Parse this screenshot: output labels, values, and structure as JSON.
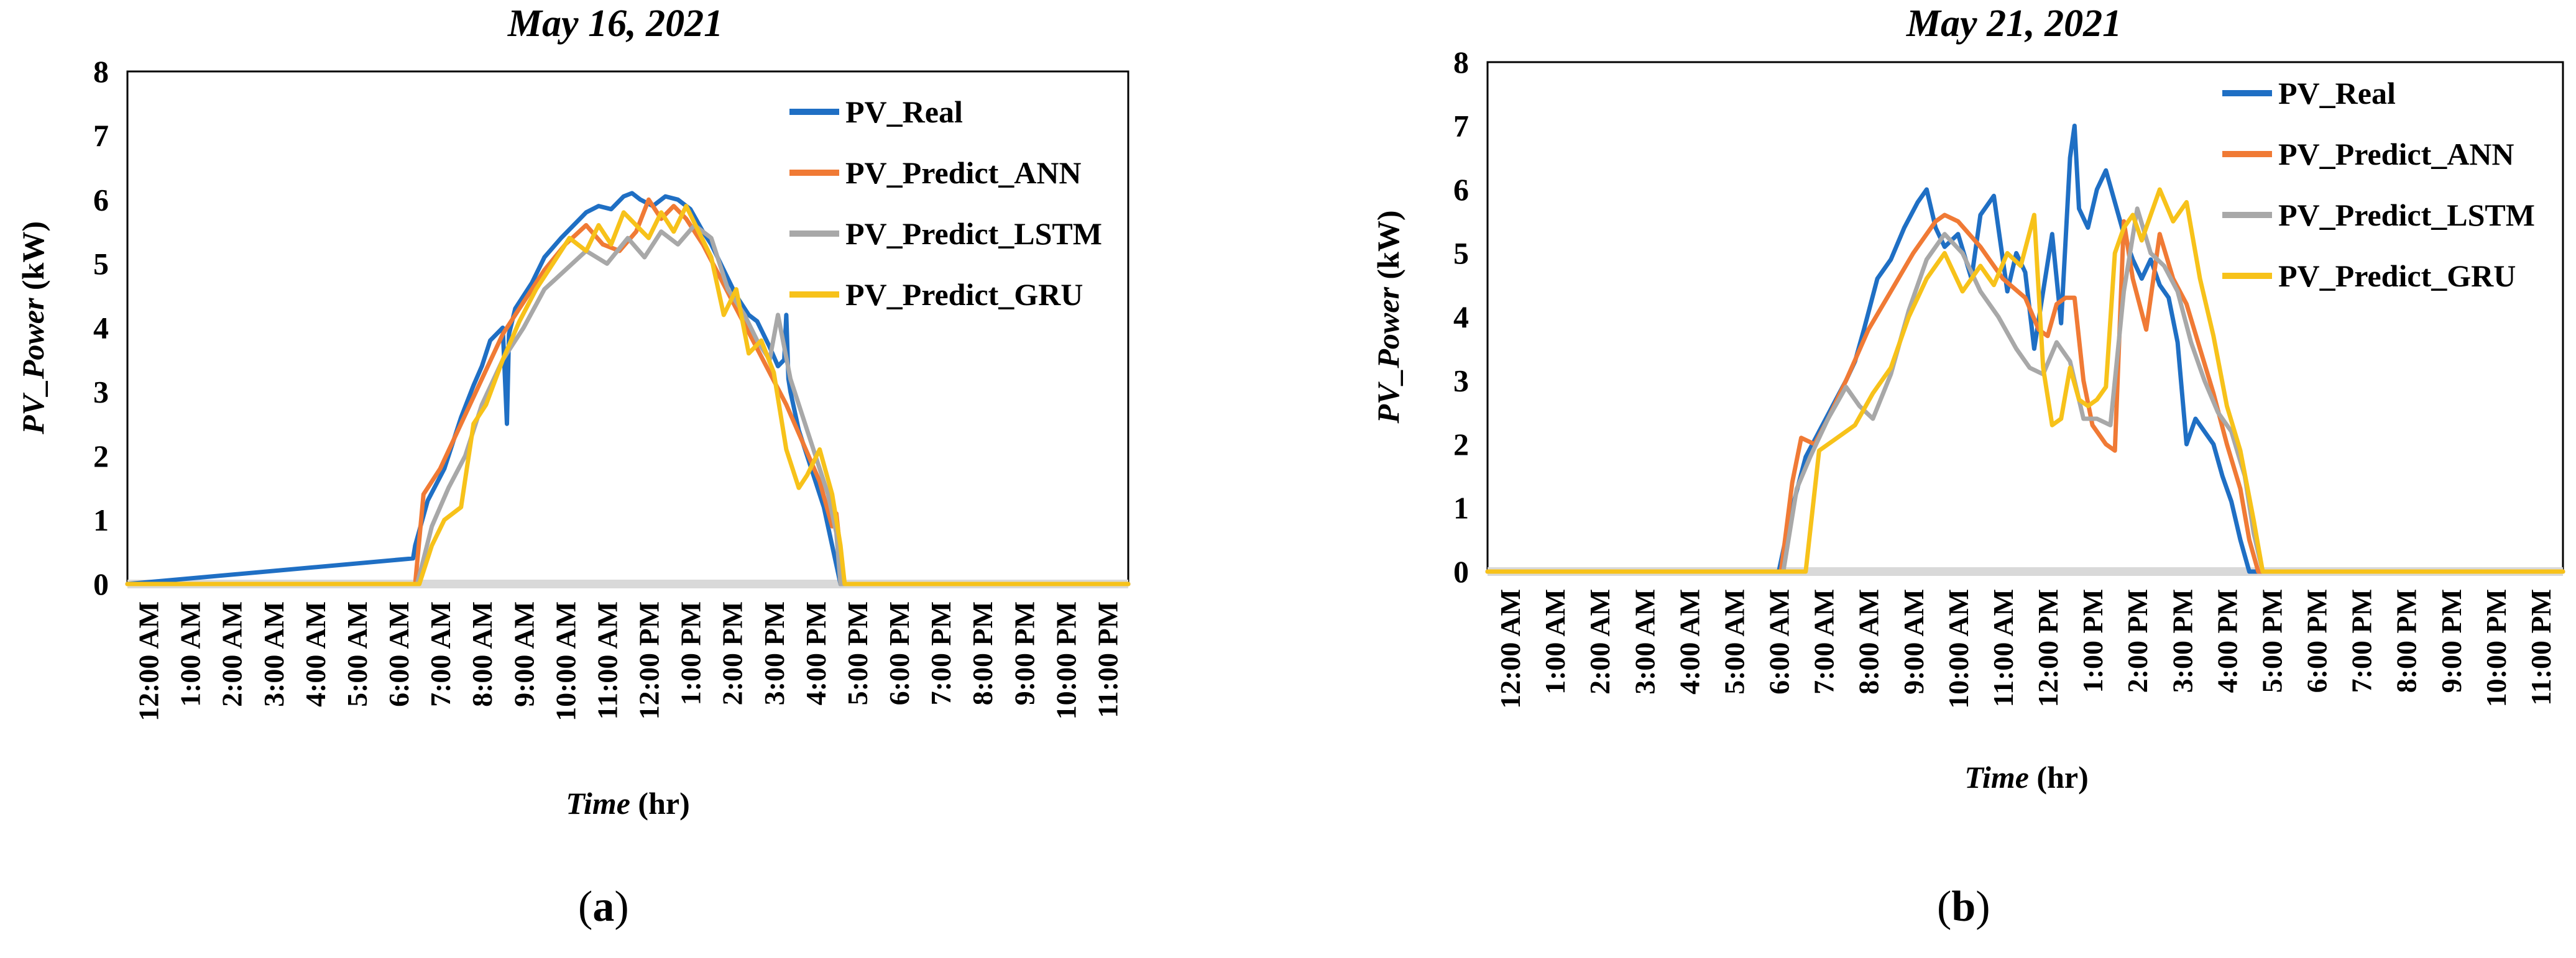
{
  "colors": {
    "PV_Real": "#1f6fc4",
    "PV_Predict_ANN": "#f07a35",
    "PV_Predict_LSTM": "#a8a8a8",
    "PV_Predict_GRU": "#f7c21a",
    "baseline": "#d9d9d9"
  },
  "chart_data": [
    {
      "panel": "a",
      "type": "line",
      "title": "May 16, 2021",
      "xlabel_italic": "Time",
      "xlabel_unit": " (hr)",
      "ylabel_italic": "PV_Power",
      "ylabel_unit": " (kW)",
      "ylim": [
        0,
        8
      ],
      "yticks": [
        0,
        1,
        2,
        3,
        4,
        5,
        6,
        7,
        8
      ],
      "xlim": [
        0,
        24
      ],
      "x_tick_labels": [
        "12:00 AM",
        "1:00 AM",
        "2:00 AM",
        "3:00 AM",
        "4:00 AM",
        "5:00 AM",
        "6:00 AM",
        "7:00 AM",
        "8:00 AM",
        "9:00 AM",
        "10:00 AM",
        "11:00 AM",
        "12:00 PM",
        "1:00 PM",
        "2:00 PM",
        "3:00 PM",
        "4:00 PM",
        "5:00 PM",
        "6:00 PM",
        "7:00 PM",
        "8:00 PM",
        "9:00 PM",
        "10:00 PM",
        "11:00 PM"
      ],
      "legend_position": "top-right",
      "series": [
        {
          "name": "PV_Real",
          "color": "#1f6fc4",
          "x": [
            0,
            6.85,
            6.9,
            7.2,
            7.6,
            8,
            8.3,
            8.5,
            8.7,
            9,
            9.1,
            9.15,
            9.3,
            9.7,
            10,
            10.4,
            10.7,
            11,
            11.3,
            11.6,
            11.9,
            12.1,
            12.3,
            12.6,
            12.9,
            13.2,
            13.5,
            13.8,
            14,
            14.3,
            14.6,
            14.9,
            15.1,
            15.4,
            15.6,
            15.75,
            15.8,
            15.85,
            15.9,
            16.1,
            16.4,
            16.7,
            16.9,
            17.1,
            24
          ],
          "y": [
            0,
            0.4,
            0.6,
            1.3,
            1.8,
            2.6,
            3.1,
            3.4,
            3.8,
            4.0,
            2.5,
            3.9,
            4.3,
            4.7,
            5.1,
            5.4,
            5.6,
            5.8,
            5.9,
            5.85,
            6.05,
            6.1,
            6.0,
            5.9,
            6.05,
            6.0,
            5.85,
            5.5,
            5.3,
            4.9,
            4.5,
            4.2,
            4.1,
            3.7,
            3.4,
            3.5,
            4.2,
            3.2,
            3.0,
            2.4,
            1.8,
            1.2,
            0.6,
            0,
            0
          ]
        },
        {
          "name": "PV_Predict_ANN",
          "color": "#f07a35",
          "x": [
            0,
            6.9,
            7.1,
            7.5,
            8,
            8.5,
            9,
            9.5,
            10,
            10.5,
            11,
            11.4,
            11.8,
            12.2,
            12.5,
            12.8,
            13.1,
            13.4,
            13.8,
            14.2,
            14.6,
            15,
            15.4,
            15.8,
            16.2,
            16.6,
            16.9,
            17.0,
            17.1,
            17.2,
            24
          ],
          "y": [
            0,
            0,
            1.4,
            1.8,
            2.5,
            3.2,
            3.9,
            4.4,
            4.9,
            5.3,
            5.6,
            5.3,
            5.2,
            5.5,
            6.0,
            5.7,
            5.9,
            5.7,
            5.3,
            4.8,
            4.3,
            3.8,
            3.3,
            2.8,
            2.2,
            1.6,
            0.9,
            1.1,
            0.5,
            0,
            0
          ]
        },
        {
          "name": "PV_Predict_LSTM",
          "color": "#a8a8a8",
          "x": [
            0,
            6.95,
            7.3,
            7.7,
            8.1,
            8.5,
            9,
            9.5,
            10,
            10.5,
            11,
            11.5,
            12,
            12.4,
            12.8,
            13.2,
            13.6,
            14,
            14.4,
            14.8,
            15.1,
            15.4,
            15.6,
            15.9,
            16.2,
            16.5,
            16.8,
            17.0,
            17.1,
            24
          ],
          "y": [
            0,
            0,
            0.9,
            1.5,
            2.0,
            2.8,
            3.5,
            4.0,
            4.6,
            4.9,
            5.2,
            5.0,
            5.4,
            5.1,
            5.5,
            5.3,
            5.6,
            5.4,
            4.6,
            4.2,
            3.8,
            3.5,
            4.2,
            3.2,
            2.6,
            2.0,
            1.4,
            0.8,
            0,
            0
          ]
        },
        {
          "name": "PV_Predict_GRU",
          "color": "#f7c21a",
          "x": [
            0,
            7.0,
            7.3,
            7.6,
            8.0,
            8.3,
            8.6,
            9.0,
            9.4,
            9.8,
            10.2,
            10.6,
            11.0,
            11.3,
            11.6,
            11.9,
            12.2,
            12.5,
            12.8,
            13.1,
            13.4,
            13.7,
            14.0,
            14.3,
            14.6,
            14.9,
            15.2,
            15.5,
            15.8,
            16.1,
            16.3,
            16.6,
            16.9,
            17.1,
            17.2,
            24
          ],
          "y": [
            0,
            0,
            0.6,
            1.0,
            1.2,
            2.5,
            2.8,
            3.5,
            4.1,
            4.6,
            5.0,
            5.4,
            5.2,
            5.6,
            5.3,
            5.8,
            5.6,
            5.4,
            5.8,
            5.5,
            5.9,
            5.5,
            5.1,
            4.2,
            4.6,
            3.6,
            3.8,
            3.3,
            2.1,
            1.5,
            1.7,
            2.1,
            1.4,
            0.6,
            0,
            0
          ]
        }
      ]
    },
    {
      "panel": "b",
      "type": "line",
      "title": "May 21, 2021",
      "xlabel_italic": "Time",
      "xlabel_unit": " (hr)",
      "ylabel_italic": "PV_Power",
      "ylabel_unit": " (kW)",
      "ylim": [
        0,
        8
      ],
      "yticks": [
        0,
        1,
        2,
        3,
        4,
        5,
        6,
        7,
        8
      ],
      "xlim": [
        0,
        24
      ],
      "x_tick_labels": [
        "12:00 AM",
        "1:00 AM",
        "2:00 AM",
        "3:00 AM",
        "4:00 AM",
        "5:00 AM",
        "6:00 AM",
        "7:00 AM",
        "8:00 AM",
        "9:00 AM",
        "10:00 AM",
        "11:00 AM",
        "12:00 PM",
        "1:00 PM",
        "2:00 PM",
        "3:00 PM",
        "4:00 PM",
        "5:00 PM",
        "6:00 PM",
        "7:00 PM",
        "8:00 PM",
        "9:00 PM",
        "10:00 PM",
        "11:00 PM"
      ],
      "legend_position": "top-right",
      "series": [
        {
          "name": "PV_Real",
          "color": "#1f6fc4",
          "x": [
            0,
            6.5,
            6.8,
            7.1,
            7.4,
            7.7,
            8.0,
            8.2,
            8.4,
            8.7,
            9.0,
            9.3,
            9.6,
            9.8,
            10.0,
            10.2,
            10.5,
            10.8,
            11.0,
            11.3,
            11.6,
            11.8,
            12.0,
            12.2,
            12.4,
            12.6,
            12.8,
            13.0,
            13.1,
            13.2,
            13.4,
            13.6,
            13.8,
            14.0,
            14.2,
            14.4,
            14.6,
            14.8,
            15.0,
            15.2,
            15.4,
            15.6,
            15.8,
            16.0,
            16.2,
            16.4,
            16.6,
            16.8,
            17.0,
            17.2,
            24
          ],
          "y": [
            0,
            0,
            1.0,
            1.8,
            2.2,
            2.6,
            3.0,
            3.3,
            3.8,
            4.6,
            4.9,
            5.4,
            5.8,
            6.0,
            5.4,
            5.1,
            5.3,
            4.6,
            5.6,
            5.9,
            4.4,
            5.0,
            4.7,
            3.5,
            4.4,
            5.3,
            3.9,
            6.5,
            7.0,
            5.7,
            5.4,
            6.0,
            6.3,
            5.8,
            5.3,
            4.9,
            4.6,
            4.9,
            4.5,
            4.3,
            3.6,
            2.0,
            2.4,
            2.2,
            2.0,
            1.5,
            1.1,
            0.5,
            0,
            0,
            0
          ]
        },
        {
          "name": "PV_Predict_ANN",
          "color": "#f07a35",
          "x": [
            0,
            6.55,
            6.8,
            7.0,
            7.3,
            7.6,
            8.0,
            8.5,
            9.0,
            9.5,
            10.0,
            10.2,
            10.5,
            11.0,
            11.5,
            12.0,
            12.3,
            12.5,
            12.7,
            12.9,
            13.1,
            13.3,
            13.5,
            13.8,
            14.0,
            14.2,
            14.4,
            14.7,
            15.0,
            15.3,
            15.6,
            15.9,
            16.2,
            16.5,
            16.8,
            17.0,
            17.2,
            24
          ],
          "y": [
            0,
            0,
            1.4,
            2.1,
            2.0,
            2.4,
            3.0,
            3.8,
            4.4,
            5.0,
            5.5,
            5.6,
            5.5,
            5.1,
            4.6,
            4.3,
            3.8,
            3.7,
            4.2,
            4.3,
            4.3,
            3.0,
            2.3,
            2.0,
            1.9,
            5.5,
            4.6,
            3.8,
            5.3,
            4.6,
            4.2,
            3.5,
            2.8,
            2.0,
            1.3,
            0.5,
            0,
            0
          ]
        },
        {
          "name": "PV_Predict_LSTM",
          "color": "#a8a8a8",
          "x": [
            0,
            6.6,
            6.9,
            7.2,
            7.6,
            8.0,
            8.3,
            8.6,
            9.0,
            9.4,
            9.8,
            10.2,
            10.6,
            11.0,
            11.4,
            11.8,
            12.1,
            12.4,
            12.7,
            13.0,
            13.3,
            13.6,
            13.9,
            14.2,
            14.5,
            14.8,
            15.1,
            15.4,
            15.7,
            16.0,
            16.3,
            16.6,
            16.9,
            17.1,
            17.3,
            24
          ],
          "y": [
            0,
            0,
            1.3,
            1.8,
            2.4,
            2.9,
            2.6,
            2.4,
            3.1,
            4.1,
            4.9,
            5.3,
            5.0,
            4.4,
            4.0,
            3.5,
            3.2,
            3.1,
            3.6,
            3.3,
            2.4,
            2.4,
            2.3,
            4.4,
            5.7,
            5.0,
            4.8,
            4.4,
            3.6,
            3.0,
            2.5,
            2.2,
            1.5,
            0.6,
            0,
            0
          ]
        },
        {
          "name": "PV_Predict_GRU",
          "color": "#f7c21a",
          "x": [
            0,
            7.1,
            7.4,
            7.8,
            8.2,
            8.6,
            9.0,
            9.4,
            9.8,
            10.2,
            10.6,
            11.0,
            11.3,
            11.6,
            11.9,
            12.2,
            12.4,
            12.6,
            12.8,
            13.0,
            13.2,
            13.4,
            13.6,
            13.8,
            14.0,
            14.2,
            14.4,
            14.6,
            14.8,
            15.0,
            15.3,
            15.6,
            15.9,
            16.2,
            16.5,
            16.8,
            17.1,
            17.3,
            24
          ],
          "y": [
            0,
            0,
            1.9,
            2.1,
            2.3,
            2.8,
            3.2,
            4.0,
            4.6,
            5.0,
            4.4,
            4.8,
            4.5,
            5.0,
            4.8,
            5.6,
            3.2,
            2.3,
            2.4,
            3.2,
            2.7,
            2.6,
            2.7,
            2.9,
            5.0,
            5.4,
            5.6,
            5.2,
            5.6,
            6.0,
            5.5,
            5.8,
            4.6,
            3.7,
            2.6,
            1.9,
            0.8,
            0,
            0
          ]
        }
      ]
    }
  ],
  "panel_labels": {
    "a": "(a)",
    "b": "(b)",
    "a_letter": "a",
    "b_letter": "b"
  }
}
